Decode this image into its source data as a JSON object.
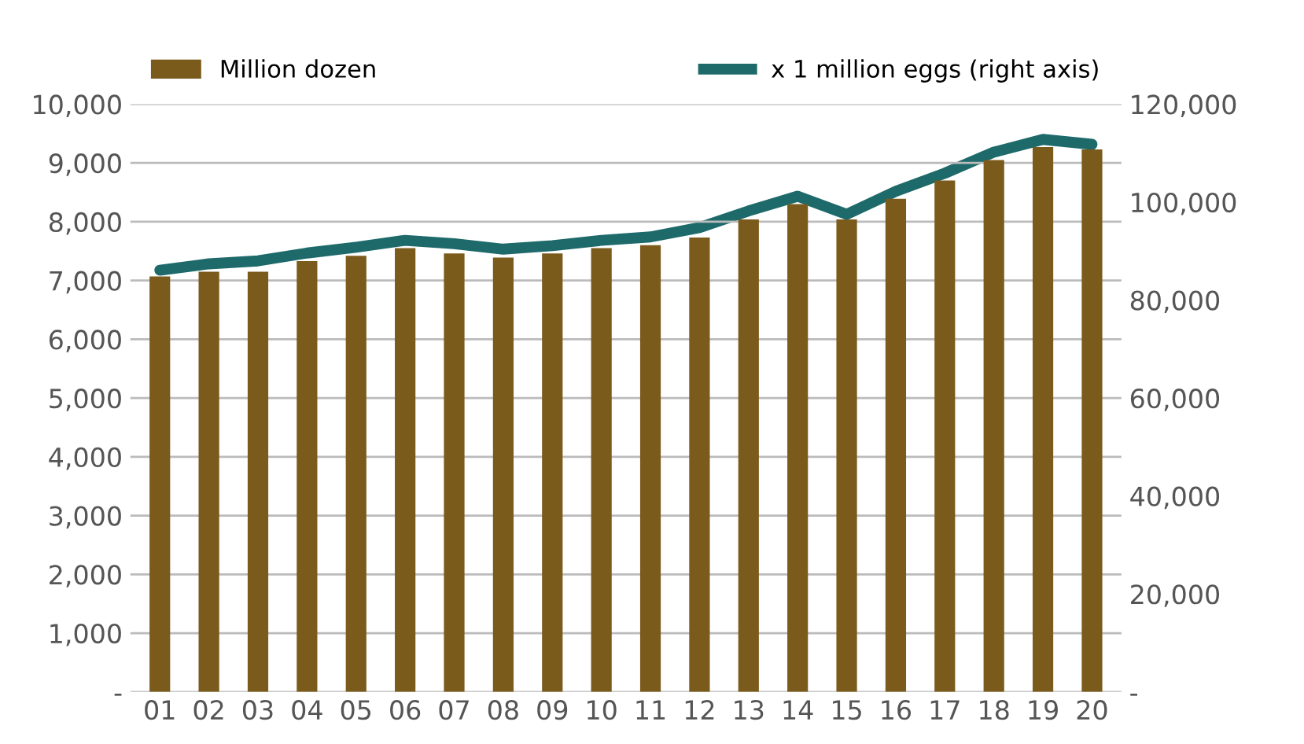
{
  "chart_data": {
    "type": "bar",
    "categories": [
      "01",
      "02",
      "03",
      "04",
      "05",
      "06",
      "07",
      "08",
      "09",
      "10",
      "11",
      "12",
      "13",
      "14",
      "15",
      "16",
      "17",
      "18",
      "19",
      "20"
    ],
    "series": [
      {
        "name": "Million dozen",
        "color": "#7b5b1c",
        "values": [
          7070,
          7150,
          7150,
          7330,
          7420,
          7550,
          7460,
          7390,
          7460,
          7550,
          7600,
          7730,
          8040,
          8300,
          8040,
          8390,
          8700,
          9050,
          9270,
          9230
        ]
      },
      {
        "name": "x 1 million eggs (right axis)",
        "type": "line",
        "axis": "y2",
        "color": "#1e6a6b",
        "values": [
          86100,
          87400,
          88000,
          89600,
          90800,
          92200,
          91500,
          90400,
          91100,
          92200,
          92900,
          94800,
          98200,
          101200,
          97500,
          102200,
          105900,
          110200,
          112800,
          111800
        ]
      }
    ],
    "ylim": [
      0,
      10000
    ],
    "yticks": [
      {
        "value": 0,
        "label": "-"
      },
      {
        "value": 1000,
        "label": "1,000"
      },
      {
        "value": 2000,
        "label": "2,000"
      },
      {
        "value": 3000,
        "label": "3,000"
      },
      {
        "value": 4000,
        "label": "4,000"
      },
      {
        "value": 5000,
        "label": "5,000"
      },
      {
        "value": 6000,
        "label": "6,000"
      },
      {
        "value": 7000,
        "label": "7,000"
      },
      {
        "value": 8000,
        "label": "8,000"
      },
      {
        "value": 9000,
        "label": "9,000"
      },
      {
        "value": 10000,
        "label": "10,000"
      }
    ],
    "y2lim": [
      0,
      120000
    ],
    "y2ticks": [
      {
        "value": 0,
        "label": "-"
      },
      {
        "value": 20000,
        "label": "20,000"
      },
      {
        "value": 40000,
        "label": "40,000"
      },
      {
        "value": 60000,
        "label": "60,000"
      },
      {
        "value": 80000,
        "label": "80,000"
      },
      {
        "value": 100000,
        "label": "100,000"
      },
      {
        "value": 120000,
        "label": "120,000"
      }
    ],
    "grid": "y",
    "legend": "top",
    "marker": "none",
    "line_style": "solid"
  }
}
